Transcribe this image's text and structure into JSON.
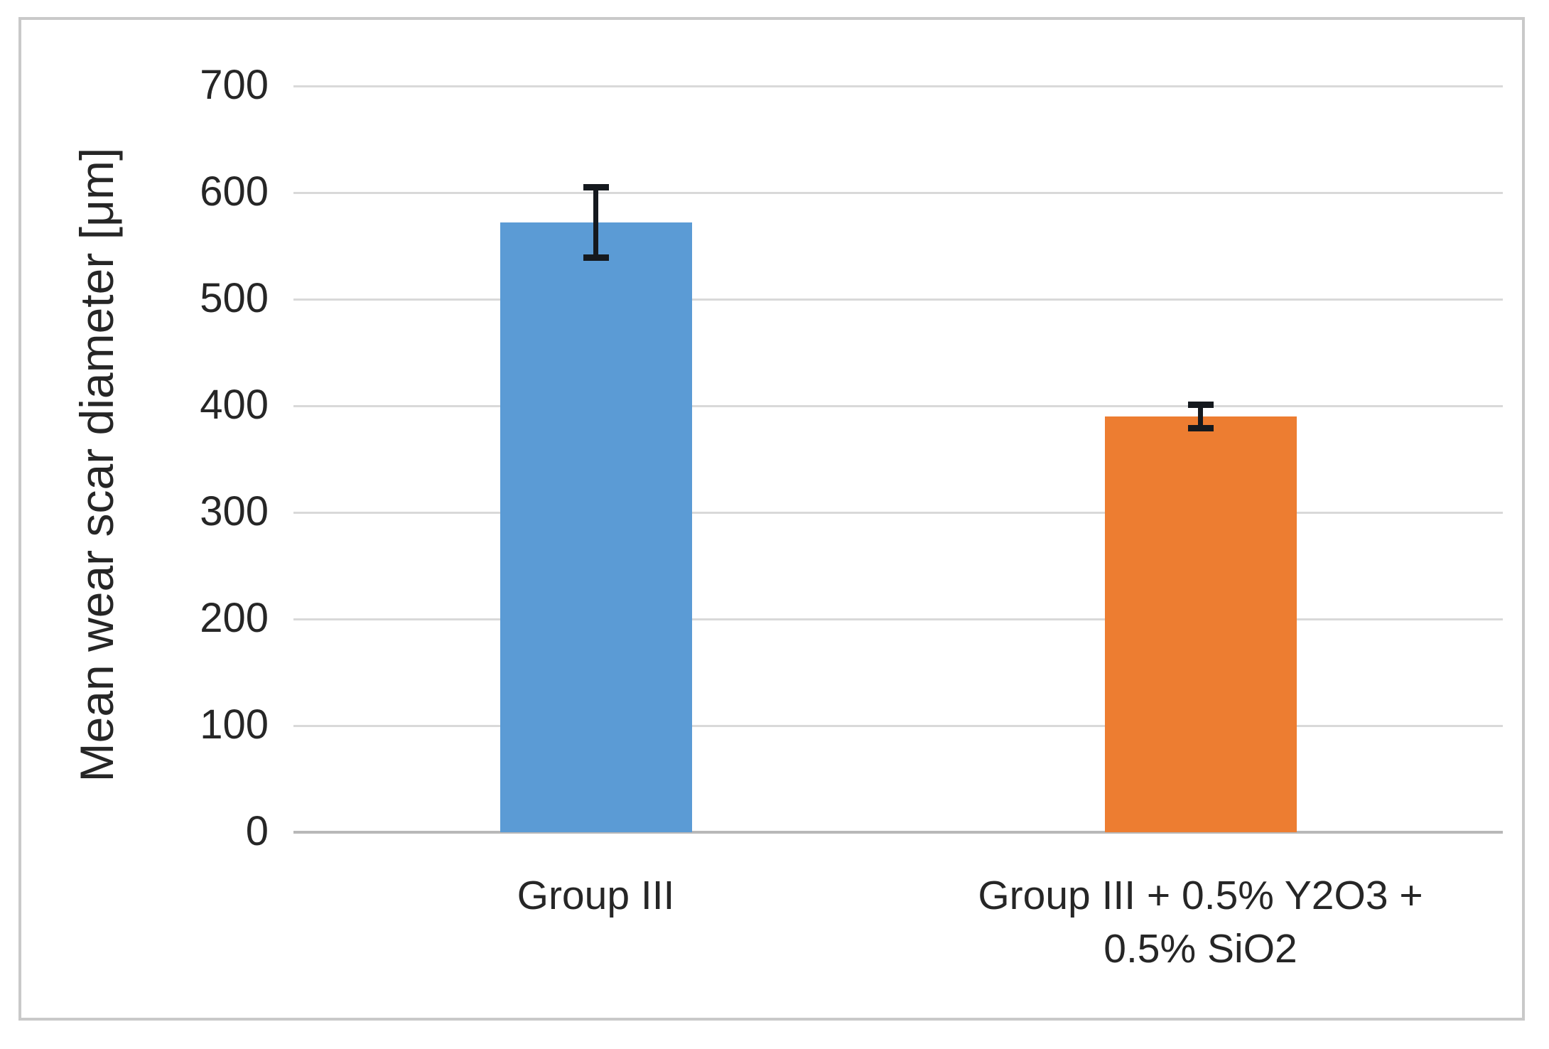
{
  "chart_data": {
    "type": "bar",
    "title": "",
    "xlabel": "",
    "ylabel": "Mean wear scar diameter [μm]",
    "categories": [
      "Group III",
      "Group III + 0.5% Y2O3 + 0.5% SiO2"
    ],
    "values": [
      572,
      390
    ],
    "error_bars": [
      36,
      14
    ],
    "bar_colors": [
      "#5B9BD5",
      "#ED7D31"
    ],
    "ylim": [
      0,
      700
    ],
    "yticks": [
      0,
      100,
      200,
      300,
      400,
      500,
      600,
      700
    ],
    "grid": true,
    "legend": false
  },
  "colors": {
    "gridline": "#d9d9d9",
    "axis_line": "#b8b8b8",
    "frame_border": "#c9c9c9",
    "error_bar": "#15191e",
    "text": "#262626"
  }
}
